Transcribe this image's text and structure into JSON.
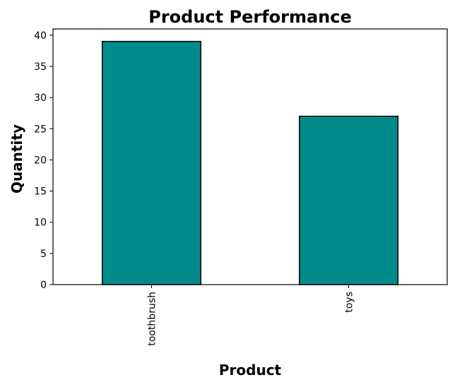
{
  "chart_data": {
    "type": "bar",
    "title": "Product Performance",
    "xlabel": "Product",
    "ylabel": "Quantity",
    "categories": [
      "toothbrush",
      "toys"
    ],
    "values": [
      39,
      27
    ],
    "ylim": [
      0,
      41
    ],
    "yticks": [
      0,
      5,
      10,
      15,
      20,
      25,
      30,
      35,
      40
    ],
    "bar_color": "#008b8b",
    "bar_edge_color": "#000000",
    "x_tick_rotation_deg": 90,
    "grid": false,
    "legend": "none"
  }
}
